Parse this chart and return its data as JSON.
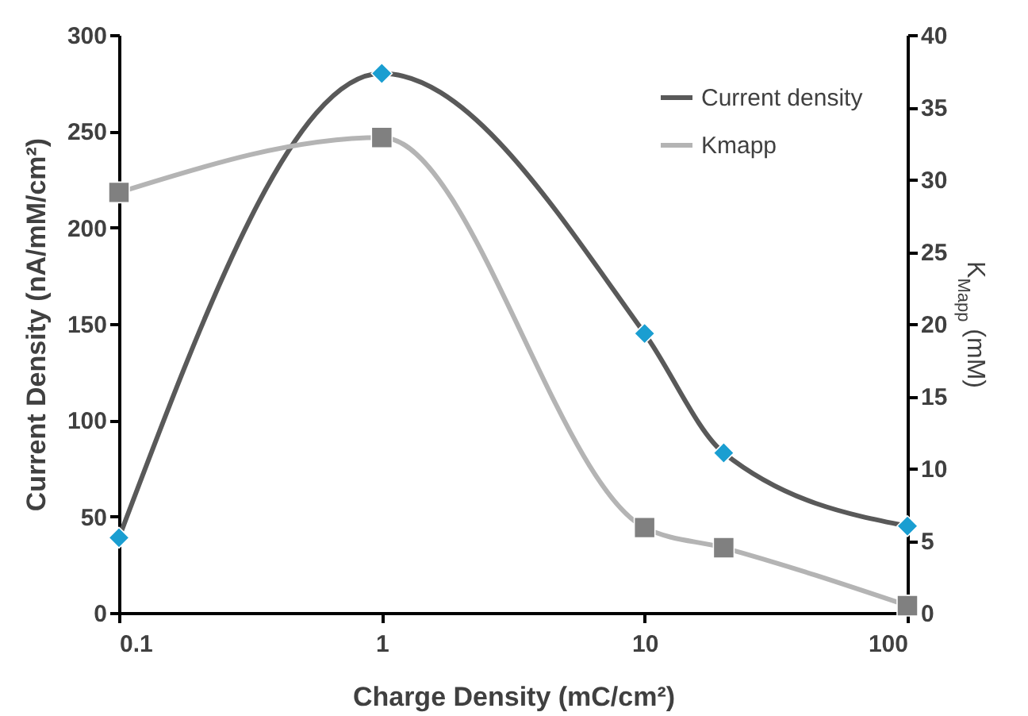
{
  "chart_data": {
    "type": "line",
    "xlabel": "Charge Density (mC/cm²)",
    "ylabel": "Current Density (nA/mM/cm²)",
    "y2label": "K$_{Mapp}$ (mM)",
    "log": "x",
    "xlim": [
      0.1,
      100
    ],
    "xticks": [
      0.1,
      1,
      10,
      100
    ],
    "ylim": [
      0,
      300
    ],
    "yticks": [
      0,
      50,
      100,
      150,
      200,
      250,
      300
    ],
    "y2lim": [
      0,
      40
    ],
    "y2ticks": [
      0,
      5,
      10,
      15,
      20,
      25,
      30,
      35,
      40
    ],
    "legend": "top right",
    "grid": false,
    "line_style": "solid",
    "series": [
      {
        "name": "Current density",
        "x": [
          0.1,
          1,
          10,
          20,
          100
        ],
        "values": [
          39,
          280,
          145,
          83,
          45
        ],
        "color": "#595959",
        "colors": [
          "#1a9ed1",
          "#1a9ed1",
          "#1a9ed1",
          "#1a9ed1",
          "#1a9ed1"
        ],
        "marker": "diamond"
      },
      {
        "name": "Kmapp",
        "axis": "y2",
        "x": [
          0.1,
          1,
          10,
          20,
          100
        ],
        "values": [
          29.1,
          32.9,
          5.9,
          4.5,
          0.5
        ],
        "color": "#b4b4b4",
        "colors": [
          "#808080",
          "#808080",
          "#808080",
          "#808080",
          "#808080"
        ],
        "marker": "square"
      }
    ]
  }
}
